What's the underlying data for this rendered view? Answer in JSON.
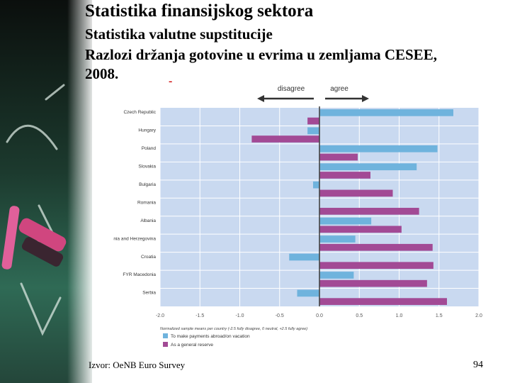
{
  "slide": {
    "title": "Statistika finansijskog sektora",
    "subtitle": "Statistika valutne supstitucije",
    "heading_line1": "Razlozi držanja gotovine u evrima u zemljama CESEE,",
    "heading_line2": "2008.",
    "dash": "-",
    "source": "Izvor: OeNB Euro Survey",
    "page_number": "94"
  },
  "colors": {
    "series1": "#6fb3dd",
    "series2": "#a24a95",
    "plot_bg": "#c9d9f0",
    "zero_line": "#444444",
    "arrow": "#333333"
  },
  "chart_data": {
    "type": "bar",
    "orientation": "horizontal",
    "arrows": {
      "left": "disagree",
      "right": "agree"
    },
    "categories": [
      "Czech Republic",
      "Hungary",
      "Poland",
      "Slovakia",
      "Bulgaria",
      "Romania",
      "Albania",
      "Bosnia and Herzegovina",
      "Croatia",
      "FYR Macedonia",
      "Serbia"
    ],
    "series": [
      {
        "name": "To make payments abroad/on vacation",
        "values": [
          1.68,
          -0.15,
          1.48,
          1.22,
          -0.08,
          0.0,
          0.65,
          0.45,
          -0.38,
          0.43,
          -0.28
        ]
      },
      {
        "name": "As a general reserve",
        "values": [
          -0.15,
          -0.85,
          0.48,
          0.64,
          0.92,
          1.25,
          1.03,
          1.42,
          1.43,
          1.35,
          1.6
        ]
      }
    ],
    "xlim": [
      -2.0,
      2.0
    ],
    "xticks": [
      -2.0,
      -1.5,
      -1.0,
      -0.5,
      0.0,
      0.5,
      1.0,
      1.5,
      2.0
    ],
    "xtick_labels": [
      "-2.0",
      "-1.5",
      "-1.0",
      "-0.5",
      "0.0",
      "0.5",
      "1.0",
      "1.5",
      "2.0"
    ],
    "xlabel": "Normalized sample means per country (-2.5 fully disagree, 0 neutral, +2.5 fully agree)",
    "legend_position": "bottom-left",
    "grid": true
  }
}
